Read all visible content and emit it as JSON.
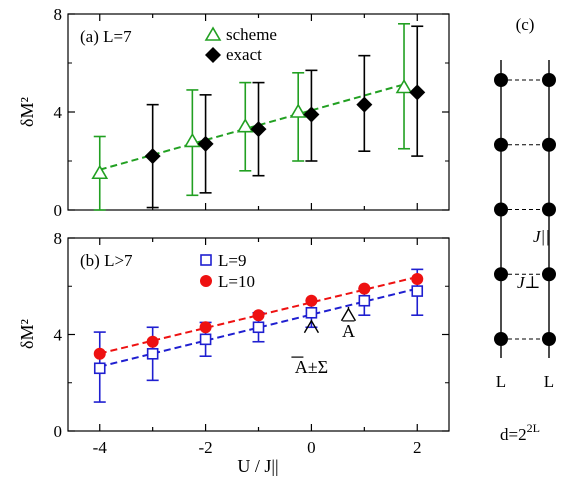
{
  "chart_data": [
    {
      "panel_label": "(a) L=7",
      "type": "scatter",
      "ylabel": "δM²",
      "xlim": [
        -4.6,
        2.6
      ],
      "ylim": [
        0,
        8
      ],
      "yticks": [
        0,
        4,
        8
      ],
      "legend_placement": "top-center",
      "series": [
        {
          "name": "scheme",
          "color": "#22a022",
          "marker": "triangle-open",
          "fit_line": "dashed",
          "x": [
            -4,
            -2.25,
            -1.25,
            -0.25,
            1.75
          ],
          "y": [
            1.5,
            2.8,
            3.4,
            4.0,
            5.0
          ],
          "err_low": [
            0.0,
            0.6,
            1.6,
            2.0,
            2.5
          ],
          "err_high": [
            3.0,
            4.9,
            5.2,
            5.6,
            7.6
          ]
        },
        {
          "name": "exact",
          "color": "#000000",
          "marker": "diamond-filled",
          "x": [
            -3,
            -2,
            -1,
            0,
            1,
            2
          ],
          "y": [
            2.2,
            2.7,
            3.3,
            3.9,
            4.3,
            4.8
          ],
          "err_low": [
            0.1,
            0.7,
            1.4,
            2.0,
            2.4,
            2.2
          ],
          "err_high": [
            4.3,
            4.7,
            5.2,
            5.7,
            6.3,
            7.5
          ]
        }
      ]
    },
    {
      "panel_label": "(b) L>7",
      "type": "scatter",
      "xlabel": "U / J||",
      "ylabel": "δM²",
      "xlim": [
        -4.6,
        2.6
      ],
      "ylim": [
        0,
        8
      ],
      "xticks": [
        -4,
        -2,
        0,
        2
      ],
      "yticks": [
        0,
        4,
        8
      ],
      "legend_placement": "top-left",
      "series": [
        {
          "name": "L=9",
          "color": "#1f1fd0",
          "marker": "square-open",
          "fit_line": "dashed",
          "x": [
            -4,
            -3,
            -2,
            -1,
            0,
            1,
            2
          ],
          "y": [
            2.6,
            3.2,
            3.8,
            4.3,
            4.9,
            5.4,
            5.8
          ],
          "err_low": [
            1.2,
            2.1,
            3.1,
            3.7,
            4.3,
            4.8,
            4.8
          ],
          "err_high": [
            4.1,
            4.3,
            4.5,
            4.9,
            5.4,
            5.9,
            6.7
          ]
        },
        {
          "name": "L=10",
          "color": "#ee1111",
          "marker": "circle-filled",
          "fit_line": "dashed",
          "x": [
            -4,
            -3,
            -2,
            -1,
            0,
            1,
            2
          ],
          "y": [
            3.2,
            3.7,
            4.3,
            4.8,
            5.4,
            5.9,
            6.3
          ]
        }
      ],
      "annotations": [
        {
          "text": "A±Σ",
          "x": 0.0,
          "y": 2.4,
          "arrow_to": [
            0.0,
            4.9
          ]
        },
        {
          "text": "A",
          "x": 0.7,
          "y": 3.9,
          "arrow_to": [
            0.7,
            5.4
          ]
        }
      ]
    }
  ],
  "ladder": {
    "label": "(c)",
    "rungs": 5,
    "leg_labels": [
      "L",
      "L"
    ],
    "coupling_parallel": "J||",
    "coupling_perp": "J⊥",
    "dimension": "d=2",
    "dimension_exp": "2L"
  }
}
